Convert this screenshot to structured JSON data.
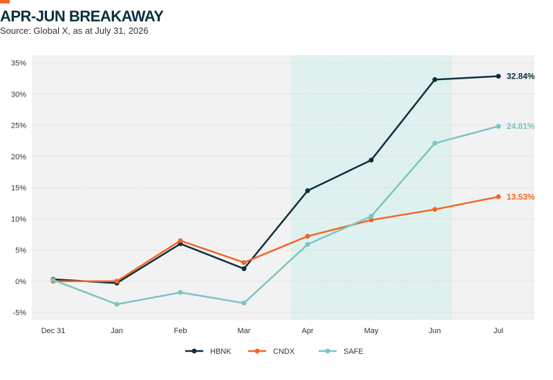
{
  "header": {
    "title": "APR-JUN BREAKAWAY",
    "source": "Source: Global X, as at July 31, 2026"
  },
  "colors": {
    "accent": "#f26522",
    "plot_bg": "#f2f2f2",
    "highlight_bg": "#dff1ef"
  },
  "chart_data": {
    "type": "line",
    "categories": [
      "Dec 31",
      "Jan",
      "Feb",
      "Mar",
      "Apr",
      "May",
      "Jun",
      "Jul"
    ],
    "ylim": [
      -5,
      35
    ],
    "yticks": [
      -5,
      0,
      5,
      10,
      15,
      20,
      25,
      30,
      35
    ],
    "ytick_labels": [
      "-5%",
      "0%",
      "5%",
      "10%",
      "15%",
      "20%",
      "25%",
      "30%",
      "35%"
    ],
    "xlabel": "",
    "ylabel": "",
    "grid": true,
    "legend_position": "bottom-center",
    "highlight_range": [
      "Apr",
      "Jun"
    ],
    "series": [
      {
        "name": "HBNK",
        "color": "#0c2f3e",
        "values": [
          0.3,
          -0.3,
          6.0,
          2.0,
          14.5,
          19.4,
          32.3,
          32.84
        ],
        "end_label": "32.84%"
      },
      {
        "name": "CNDX",
        "color": "#f26522",
        "values": [
          0.0,
          0.0,
          6.5,
          3.0,
          7.2,
          9.8,
          11.5,
          13.53
        ],
        "end_label": "13.53%"
      },
      {
        "name": "SAFE",
        "color": "#7cc4c1",
        "values": [
          0.2,
          -3.7,
          -1.8,
          -3.5,
          5.9,
          10.4,
          22.1,
          24.81
        ],
        "end_label": "24.81%"
      }
    ]
  }
}
